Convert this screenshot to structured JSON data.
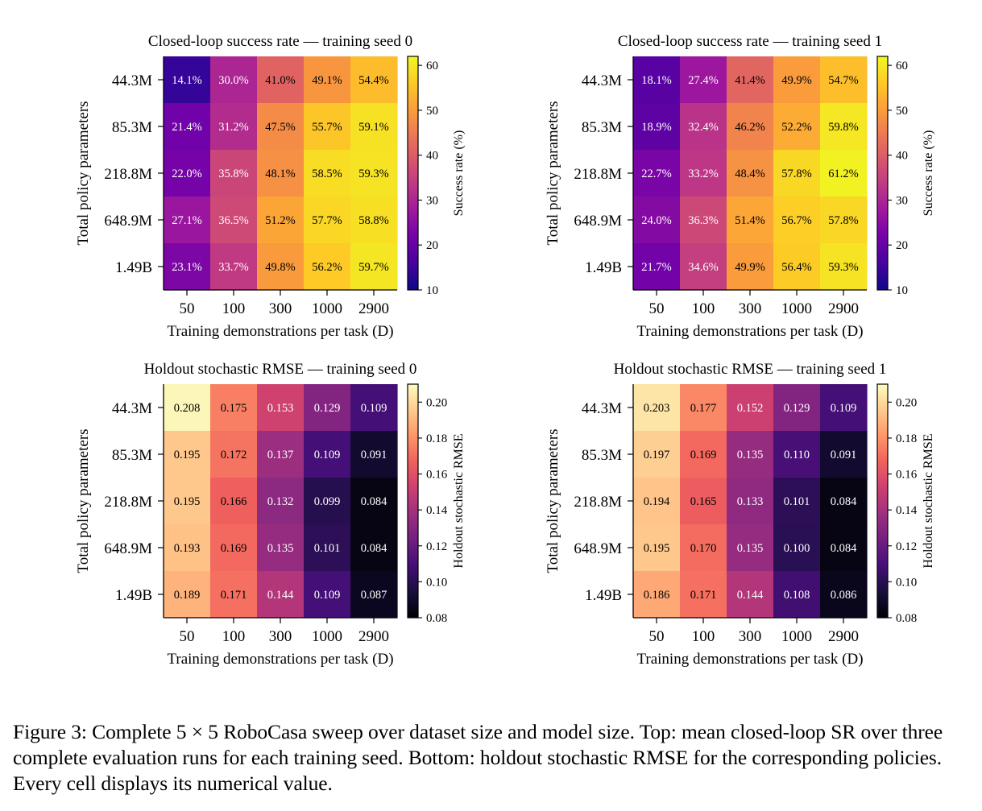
{
  "colors": {
    "plasma": [
      "#0d0887",
      "#46039f",
      "#7201a8",
      "#9c179e",
      "#bd3786",
      "#d8576b",
      "#ed7953",
      "#fb9f3a",
      "#fdca26",
      "#f0f921"
    ],
    "magma": [
      "#000004",
      "#180f3d",
      "#440f76",
      "#721f81",
      "#9e2f7f",
      "#cd4071",
      "#f1605d",
      "#fd9668",
      "#feca8d",
      "#fcfdbf"
    ]
  },
  "chart_data": [
    {
      "type": "heatmap",
      "title": "Closed-loop success rate — training seed 0",
      "xlabel": "Training demonstrations per task (D)",
      "ylabel": "Total policy parameters",
      "x_categories": [
        "50",
        "100",
        "300",
        "1000",
        "2900"
      ],
      "y_categories": [
        "44.3M",
        "85.3M",
        "218.8M",
        "648.9M",
        "1.49B"
      ],
      "values": [
        [
          14.1,
          30.0,
          41.0,
          49.1,
          54.4
        ],
        [
          21.4,
          31.2,
          47.5,
          55.7,
          59.1
        ],
        [
          22.0,
          35.8,
          48.1,
          58.5,
          59.3
        ],
        [
          27.1,
          36.5,
          51.2,
          57.7,
          58.8
        ],
        [
          23.1,
          33.7,
          49.8,
          56.2,
          59.7
        ]
      ],
      "cell_labels": [
        [
          "14.1%",
          "30.0%",
          "41.0%",
          "49.1%",
          "54.4%"
        ],
        [
          "21.4%",
          "31.2%",
          "47.5%",
          "55.7%",
          "59.1%"
        ],
        [
          "22.0%",
          "35.8%",
          "48.1%",
          "58.5%",
          "59.3%"
        ],
        [
          "27.1%",
          "36.5%",
          "51.2%",
          "57.7%",
          "58.8%"
        ],
        [
          "23.1%",
          "33.7%",
          "49.8%",
          "56.2%",
          "59.7%"
        ]
      ],
      "colormap": "plasma",
      "vmin": 10,
      "vmax": 62,
      "colorbar": {
        "label": "Success rate (%)",
        "ticks": [
          10,
          20,
          30,
          40,
          50,
          60
        ],
        "tick_labels": [
          "10",
          "20",
          "30",
          "40",
          "50",
          "60"
        ]
      }
    },
    {
      "type": "heatmap",
      "title": "Closed-loop success rate — training seed 1",
      "xlabel": "Training demonstrations per task (D)",
      "ylabel": "Total policy parameters",
      "x_categories": [
        "50",
        "100",
        "300",
        "1000",
        "2900"
      ],
      "y_categories": [
        "44.3M",
        "85.3M",
        "218.8M",
        "648.9M",
        "1.49B"
      ],
      "values": [
        [
          18.1,
          27.4,
          41.4,
          49.9,
          54.7
        ],
        [
          18.9,
          32.4,
          46.2,
          52.2,
          59.8
        ],
        [
          22.7,
          33.2,
          48.4,
          57.8,
          61.2
        ],
        [
          24.0,
          36.3,
          51.4,
          56.7,
          57.8
        ],
        [
          21.7,
          34.6,
          49.9,
          56.4,
          59.3
        ]
      ],
      "cell_labels": [
        [
          "18.1%",
          "27.4%",
          "41.4%",
          "49.9%",
          "54.7%"
        ],
        [
          "18.9%",
          "32.4%",
          "46.2%",
          "52.2%",
          "59.8%"
        ],
        [
          "22.7%",
          "33.2%",
          "48.4%",
          "57.8%",
          "61.2%"
        ],
        [
          "24.0%",
          "36.3%",
          "51.4%",
          "56.7%",
          "57.8%"
        ],
        [
          "21.7%",
          "34.6%",
          "49.9%",
          "56.4%",
          "59.3%"
        ]
      ],
      "colormap": "plasma",
      "vmin": 10,
      "vmax": 62,
      "colorbar": {
        "label": "Success rate (%)",
        "ticks": [
          10,
          20,
          30,
          40,
          50,
          60
        ],
        "tick_labels": [
          "10",
          "20",
          "30",
          "40",
          "50",
          "60"
        ]
      }
    },
    {
      "type": "heatmap",
      "title": "Holdout stochastic RMSE — training seed 0",
      "xlabel": "Training demonstrations per task (D)",
      "ylabel": "Total policy parameters",
      "x_categories": [
        "50",
        "100",
        "300",
        "1000",
        "2900"
      ],
      "y_categories": [
        "44.3M",
        "85.3M",
        "218.8M",
        "648.9M",
        "1.49B"
      ],
      "values": [
        [
          0.208,
          0.175,
          0.153,
          0.129,
          0.109
        ],
        [
          0.195,
          0.172,
          0.137,
          0.109,
          0.091
        ],
        [
          0.195,
          0.166,
          0.132,
          0.099,
          0.084
        ],
        [
          0.193,
          0.169,
          0.135,
          0.101,
          0.084
        ],
        [
          0.189,
          0.171,
          0.144,
          0.109,
          0.087
        ]
      ],
      "cell_labels": [
        [
          "0.208",
          "0.175",
          "0.153",
          "0.129",
          "0.109"
        ],
        [
          "0.195",
          "0.172",
          "0.137",
          "0.109",
          "0.091"
        ],
        [
          "0.195",
          "0.166",
          "0.132",
          "0.099",
          "0.084"
        ],
        [
          "0.193",
          "0.169",
          "0.135",
          "0.101",
          "0.084"
        ],
        [
          "0.189",
          "0.171",
          "0.144",
          "0.109",
          "0.087"
        ]
      ],
      "colormap": "magma",
      "vmin": 0.08,
      "vmax": 0.21,
      "colorbar": {
        "label": "Holdout stochastic RMSE",
        "ticks": [
          0.08,
          0.1,
          0.12,
          0.14,
          0.16,
          0.18,
          0.2
        ],
        "tick_labels": [
          "0.08",
          "0.10",
          "0.12",
          "0.14",
          "0.16",
          "0.18",
          "0.20"
        ]
      }
    },
    {
      "type": "heatmap",
      "title": "Holdout stochastic RMSE — training seed 1",
      "xlabel": "Training demonstrations per task (D)",
      "ylabel": "Total policy parameters",
      "x_categories": [
        "50",
        "100",
        "300",
        "1000",
        "2900"
      ],
      "y_categories": [
        "44.3M",
        "85.3M",
        "218.8M",
        "648.9M",
        "1.49B"
      ],
      "values": [
        [
          0.203,
          0.177,
          0.152,
          0.129,
          0.109
        ],
        [
          0.197,
          0.169,
          0.135,
          0.11,
          0.091
        ],
        [
          0.194,
          0.165,
          0.133,
          0.101,
          0.084
        ],
        [
          0.195,
          0.17,
          0.135,
          0.1,
          0.084
        ],
        [
          0.186,
          0.171,
          0.144,
          0.108,
          0.086
        ]
      ],
      "cell_labels": [
        [
          "0.203",
          "0.177",
          "0.152",
          "0.129",
          "0.109"
        ],
        [
          "0.197",
          "0.169",
          "0.135",
          "0.110",
          "0.091"
        ],
        [
          "0.194",
          "0.165",
          "0.133",
          "0.101",
          "0.084"
        ],
        [
          "0.195",
          "0.170",
          "0.135",
          "0.100",
          "0.084"
        ],
        [
          "0.186",
          "0.171",
          "0.144",
          "0.108",
          "0.086"
        ]
      ],
      "colormap": "magma",
      "vmin": 0.08,
      "vmax": 0.21,
      "colorbar": {
        "label": "Holdout stochastic RMSE",
        "ticks": [
          0.08,
          0.1,
          0.12,
          0.14,
          0.16,
          0.18,
          0.2
        ],
        "tick_labels": [
          "0.08",
          "0.10",
          "0.12",
          "0.14",
          "0.16",
          "0.18",
          "0.20"
        ]
      }
    }
  ],
  "caption": {
    "text": "Figure 3: Complete 5 × 5 RoboCasa sweep over dataset size and model size. Top: mean closed-loop SR over three complete evaluation runs for each training seed. Bottom: holdout stochastic RMSE for the corresponding policies. Every cell displays its numerical value."
  }
}
